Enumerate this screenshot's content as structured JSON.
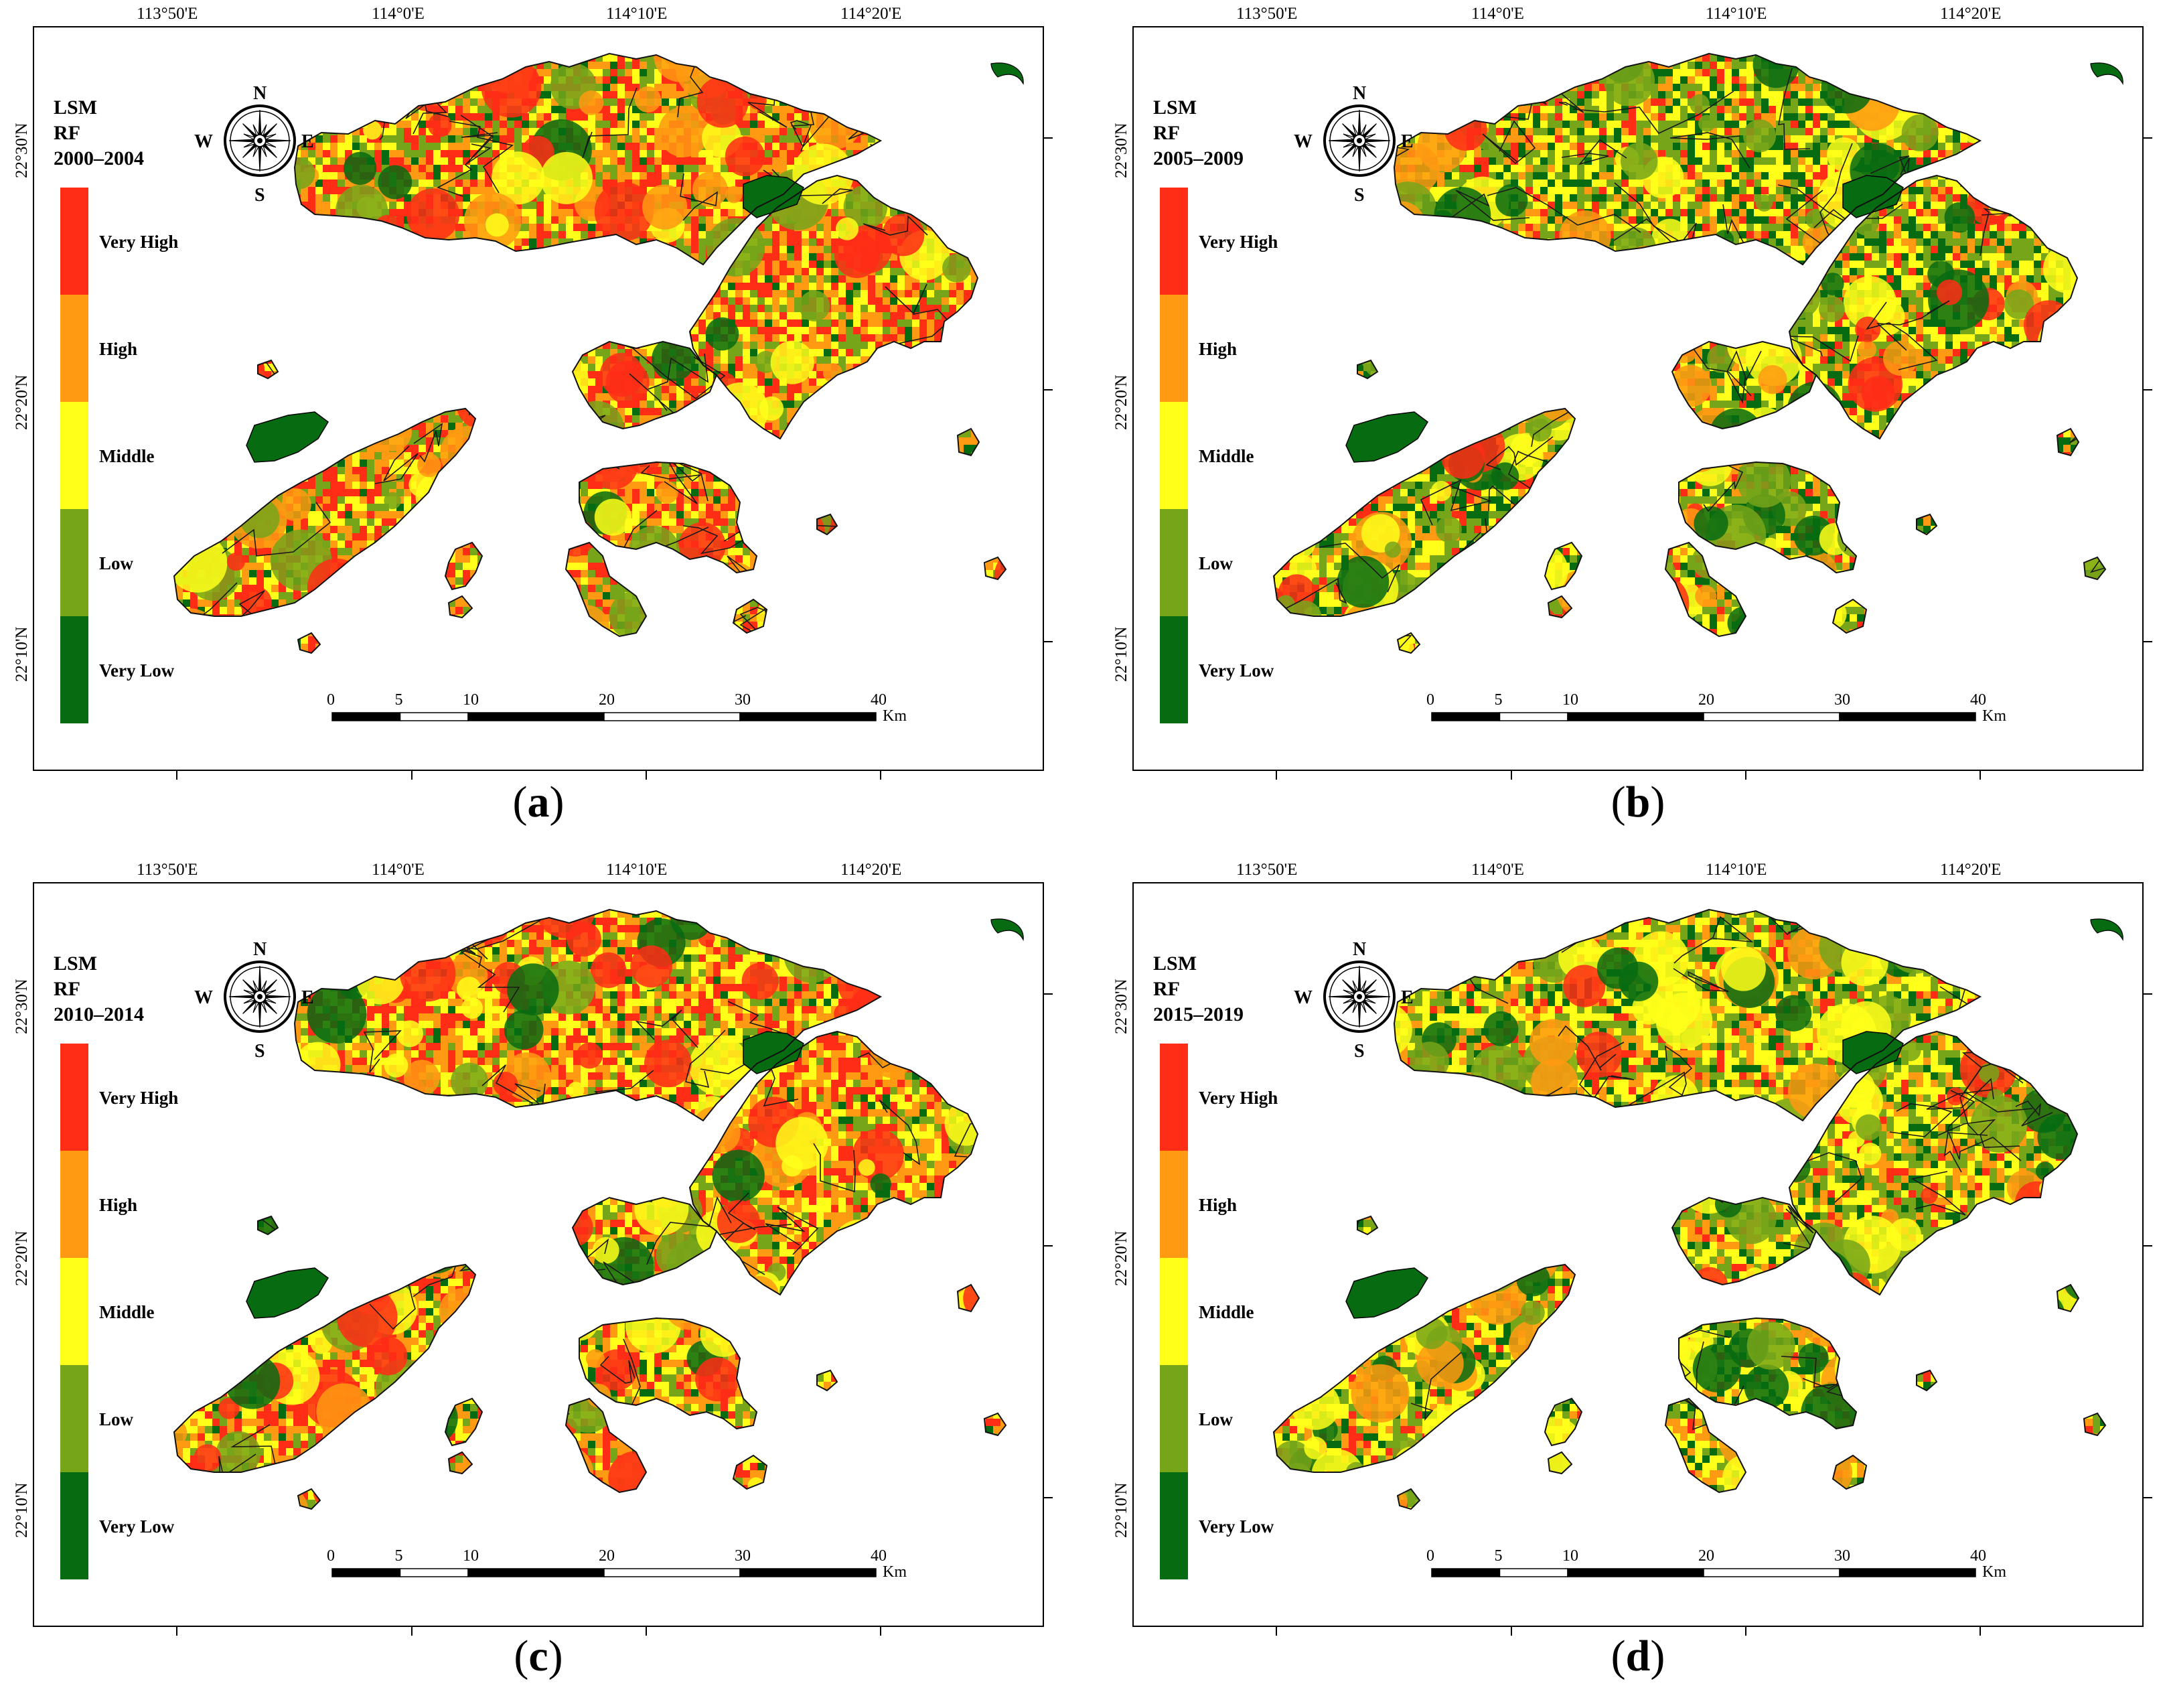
{
  "figure": {
    "panels": [
      {
        "id": "a",
        "letter": "a",
        "title_lines": [
          "LSM",
          "RF",
          "2000–2004"
        ],
        "palette": "a"
      },
      {
        "id": "b",
        "letter": "b",
        "title_lines": [
          "LSM",
          "RF",
          "2005–2009"
        ],
        "palette": "b"
      },
      {
        "id": "c",
        "letter": "c",
        "title_lines": [
          "LSM",
          "RF",
          "2010–2014"
        ],
        "palette": "c"
      },
      {
        "id": "d",
        "letter": "d",
        "title_lines": [
          "LSM",
          "RF",
          "2015–2019"
        ],
        "palette": "d"
      }
    ],
    "legend": {
      "classes": [
        {
          "label": "Very High",
          "color": "#ff2d16"
        },
        {
          "label": "High",
          "color": "#ff9a12"
        },
        {
          "label": "Middle",
          "color": "#ffff1a"
        },
        {
          "label": "Low",
          "color": "#77a51a"
        },
        {
          "label": "Very Low",
          "color": "#076b12"
        }
      ]
    },
    "axes": {
      "longitude_ticks": [
        "113°50'E",
        "114°0'E",
        "114°10'E",
        "114°20'E"
      ],
      "latitude_ticks": [
        "22°30'N",
        "22°20'N",
        "22°10'N"
      ]
    },
    "compass": {
      "north": "N",
      "south": "S",
      "east": "E",
      "west": "W"
    },
    "scale_bar": {
      "labels": [
        "0",
        "5",
        "10",
        "20",
        "30",
        "40"
      ],
      "unit": "Km"
    },
    "class_weights": {
      "a": [
        0.3,
        0.26,
        0.2,
        0.18,
        0.06
      ],
      "b": [
        0.12,
        0.13,
        0.28,
        0.27,
        0.2
      ],
      "c": [
        0.26,
        0.27,
        0.26,
        0.14,
        0.07
      ],
      "d": [
        0.1,
        0.18,
        0.3,
        0.27,
        0.15
      ]
    }
  }
}
